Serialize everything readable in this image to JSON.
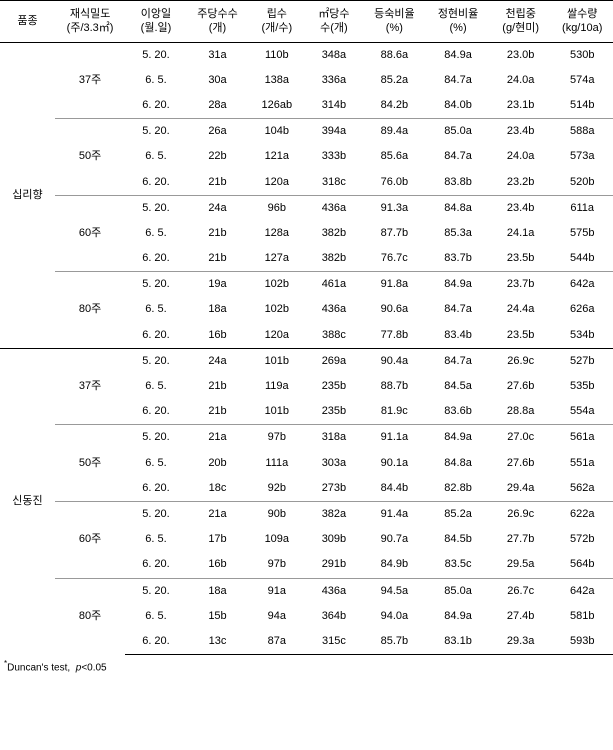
{
  "header": {
    "c0": "품종",
    "c1a": "재식밀도",
    "c1b": "(주/3.3㎡)",
    "c2a": "이앙일",
    "c2b": "(월.일)",
    "c3a": "주당수수",
    "c3b": "(개)",
    "c4a": "립수",
    "c4b": "(개/수)",
    "c5a": "㎡당수",
    "c5b": "수(개)",
    "c6a": "등숙비율",
    "c6b": "(%)",
    "c7a": "정현비율",
    "c7b": "(%)",
    "c8a": "천립중",
    "c8b": "(g/현미)",
    "c9a": "쌀수량",
    "c9b": "(kg/10a)"
  },
  "varieties": [
    {
      "name": "십리향",
      "densities": [
        {
          "label": "37주",
          "rows": [
            {
              "date": "5. 20.",
              "c3": "31a",
              "c4": "110b",
              "c5": "348a",
              "c6": "88.6a",
              "c7": "84.9a",
              "c8": "23.0b",
              "c9": "530b"
            },
            {
              "date": "6. 5.",
              "c3": "30a",
              "c4": "138a",
              "c5": "336a",
              "c6": "85.2a",
              "c7": "84.7a",
              "c8": "24.0a",
              "c9": "574a"
            },
            {
              "date": "6. 20.",
              "c3": "28a",
              "c4": "126ab",
              "c5": "314b",
              "c6": "84.2b",
              "c7": "84.0b",
              "c8": "23.1b",
              "c9": "514b"
            }
          ]
        },
        {
          "label": "50주",
          "rows": [
            {
              "date": "5. 20.",
              "c3": "26a",
              "c4": "104b",
              "c5": "394a",
              "c6": "89.4a",
              "c7": "85.0a",
              "c8": "23.4b",
              "c9": "588a"
            },
            {
              "date": "6. 5.",
              "c3": "22b",
              "c4": "121a",
              "c5": "333b",
              "c6": "85.6a",
              "c7": "84.7a",
              "c8": "24.0a",
              "c9": "573a"
            },
            {
              "date": "6. 20.",
              "c3": "21b",
              "c4": "120a",
              "c5": "318c",
              "c6": "76.0b",
              "c7": "83.8b",
              "c8": "23.2b",
              "c9": "520b"
            }
          ]
        },
        {
          "label": "60주",
          "rows": [
            {
              "date": "5. 20.",
              "c3": "24a",
              "c4": "96b",
              "c5": "436a",
              "c6": "91.3a",
              "c7": "84.8a",
              "c8": "23.4b",
              "c9": "611a"
            },
            {
              "date": "6. 5.",
              "c3": "21b",
              "c4": "128a",
              "c5": "382b",
              "c6": "87.7b",
              "c7": "85.3a",
              "c8": "24.1a",
              "c9": "575b"
            },
            {
              "date": "6. 20.",
              "c3": "21b",
              "c4": "127a",
              "c5": "382b",
              "c6": "76.7c",
              "c7": "83.7b",
              "c8": "23.5b",
              "c9": "544b"
            }
          ]
        },
        {
          "label": "80주",
          "rows": [
            {
              "date": "5. 20.",
              "c3": "19a",
              "c4": "102b",
              "c5": "461a",
              "c6": "91.8a",
              "c7": "84.9a",
              "c8": "23.7b",
              "c9": "642a"
            },
            {
              "date": "6. 5.",
              "c3": "18a",
              "c4": "102b",
              "c5": "436a",
              "c6": "90.6a",
              "c7": "84.7a",
              "c8": "24.4a",
              "c9": "626a"
            },
            {
              "date": "6. 20.",
              "c3": "16b",
              "c4": "120a",
              "c5": "388c",
              "c6": "77.8b",
              "c7": "83.4b",
              "c8": "23.5b",
              "c9": "534b"
            }
          ]
        }
      ]
    },
    {
      "name": "신동진",
      "densities": [
        {
          "label": "37주",
          "rows": [
            {
              "date": "5. 20.",
              "c3": "24a",
              "c4": "101b",
              "c5": "269a",
              "c6": "90.4a",
              "c7": "84.7a",
              "c8": "26.9c",
              "c9": "527b"
            },
            {
              "date": "6. 5.",
              "c3": "21b",
              "c4": "119a",
              "c5": "235b",
              "c6": "88.7b",
              "c7": "84.5a",
              "c8": "27.6b",
              "c9": "535b"
            },
            {
              "date": "6. 20.",
              "c3": "21b",
              "c4": "101b",
              "c5": "235b",
              "c6": "81.9c",
              "c7": "83.6b",
              "c8": "28.8a",
              "c9": "554a"
            }
          ]
        },
        {
          "label": "50주",
          "rows": [
            {
              "date": "5. 20.",
              "c3": "21a",
              "c4": "97b",
              "c5": "318a",
              "c6": "91.1a",
              "c7": "84.9a",
              "c8": "27.0c",
              "c9": "561a"
            },
            {
              "date": "6. 5.",
              "c3": "20b",
              "c4": "111a",
              "c5": "303a",
              "c6": "90.1a",
              "c7": "84.8a",
              "c8": "27.6b",
              "c9": "551a"
            },
            {
              "date": "6. 20.",
              "c3": "18c",
              "c4": "92b",
              "c5": "273b",
              "c6": "84.4b",
              "c7": "82.8b",
              "c8": "29.4a",
              "c9": "562a"
            }
          ]
        },
        {
          "label": "60주",
          "rows": [
            {
              "date": "5. 20.",
              "c3": "21a",
              "c4": "90b",
              "c5": "382a",
              "c6": "91.4a",
              "c7": "85.2a",
              "c8": "26.9c",
              "c9": "622a"
            },
            {
              "date": "6. 5.",
              "c3": "17b",
              "c4": "109a",
              "c5": "309b",
              "c6": "90.7a",
              "c7": "84.5b",
              "c8": "27.7b",
              "c9": "572b"
            },
            {
              "date": "6. 20.",
              "c3": "16b",
              "c4": "97b",
              "c5": "291b",
              "c6": "84.9b",
              "c7": "83.5c",
              "c8": "29.5a",
              "c9": "564b"
            }
          ]
        },
        {
          "label": "80주",
          "rows": [
            {
              "date": "5. 20.",
              "c3": "18a",
              "c4": "91a",
              "c5": "436a",
              "c6": "94.5a",
              "c7": "85.0a",
              "c8": "26.7c",
              "c9": "642a"
            },
            {
              "date": "6. 5.",
              "c3": "15b",
              "c4": "94a",
              "c5": "364b",
              "c6": "94.0a",
              "c7": "84.9a",
              "c8": "27.4b",
              "c9": "581b"
            },
            {
              "date": "6. 20.",
              "c3": "13c",
              "c4": "87a",
              "c5": "315c",
              "c6": "85.7b",
              "c7": "83.1b",
              "c8": "29.3a",
              "c9": "593b"
            }
          ]
        }
      ]
    }
  ],
  "footnote": {
    "marker": "*",
    "text1": "Duncan's  test,",
    "text2": "p",
    "text3": "<0.05"
  }
}
